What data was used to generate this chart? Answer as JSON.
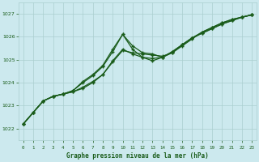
{
  "title": "Graphe pression niveau de la mer (hPa)",
  "x_hours": [
    0,
    1,
    2,
    3,
    4,
    5,
    6,
    7,
    8,
    9,
    10,
    11,
    12,
    13,
    14,
    15,
    16,
    17,
    18,
    19,
    20,
    21,
    22,
    23
  ],
  "line1_y": [
    1022.2,
    1022.7,
    1023.2,
    1023.4,
    1023.5,
    1023.6,
    1023.75,
    1024.0,
    1024.35,
    1024.9,
    1025.4,
    1025.3,
    1025.25,
    1025.2,
    1025.15,
    1025.3,
    1025.6,
    1025.9,
    1026.2,
    1026.4,
    1026.6,
    1026.75,
    1026.85,
    1026.95
  ],
  "line2_y": [
    1022.2,
    1022.7,
    1023.2,
    1023.4,
    1023.5,
    1023.6,
    1023.8,
    1024.05,
    1024.35,
    1024.95,
    1025.45,
    1025.25,
    1025.1,
    1025.05,
    1025.1,
    1025.35,
    1025.65,
    1025.95,
    1026.2,
    1026.4,
    1026.6,
    1026.75,
    1026.85,
    1026.95
  ],
  "line3_y": [
    1022.2,
    1022.7,
    1023.2,
    1023.4,
    1023.5,
    1023.65,
    1024.0,
    1024.3,
    1024.7,
    1025.35,
    1026.1,
    1025.6,
    1025.3,
    1025.25,
    1025.1,
    1025.3,
    1025.65,
    1025.95,
    1026.15,
    1026.35,
    1026.55,
    1026.7,
    1026.85,
    1026.95
  ],
  "line4_y": [
    1022.2,
    1022.7,
    1023.2,
    1023.4,
    1023.5,
    1023.65,
    1024.05,
    1024.35,
    1024.75,
    1025.45,
    1026.1,
    1025.45,
    1025.1,
    1024.95,
    1025.1,
    1025.35,
    1025.65,
    1025.95,
    1026.15,
    1026.35,
    1026.55,
    1026.7,
    1026.85,
    1026.95
  ],
  "ylim": [
    1021.5,
    1027.5
  ],
  "yticks": [
    1022,
    1023,
    1024,
    1025,
    1026,
    1027
  ],
  "bg_color": "#cce9ee",
  "line_color": "#1a5c1a",
  "grid_color": "#aacfcf",
  "label_color": "#1a5c1a"
}
